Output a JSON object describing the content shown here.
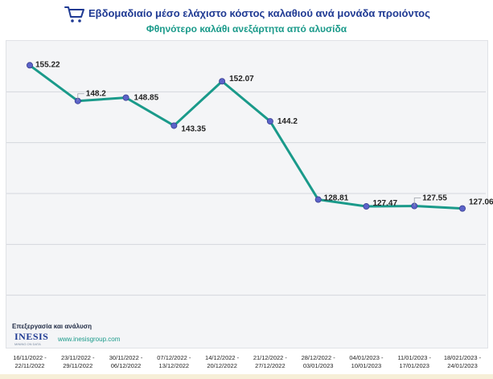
{
  "header": {
    "title": "Εβδομαδιαίο μέσο ελάχιστο κόστος καλαθιού ανά μονάδα προιόντος",
    "subtitle": "Φθηνότερο καλάθι ανεξάρτητα από αλυσίδα",
    "icon": "shopping-cart-icon"
  },
  "footer": {
    "credit": "Επεξεργασία και ανάλυση",
    "logo_text": "INESIS",
    "logo_tagline": "MINING ON DATA",
    "website": "www.inesisgroup.com"
  },
  "colors": {
    "line": "#1a9a8a",
    "marker": "#5b63c9",
    "title": "#1f3a93",
    "subtitle": "#1a9a8a",
    "grid": "#d4d7dc"
  },
  "chart_data": {
    "type": "line",
    "title": "Εβδομαδιαίο μέσο ελάχιστο κόστος καλαθιού ανά μονάδα προιόντος",
    "subtitle": "Φθηνότερο καλάθι ανεξάρτητα από αλυσίδα",
    "xlabel": "",
    "ylabel": "",
    "ylim": [
      100,
      160
    ],
    "grid": true,
    "categories": [
      [
        "16/11/2022 -",
        "22/11/2022"
      ],
      [
        "23/11/2022 -",
        "29/11/2022"
      ],
      [
        "30/11/2022 -",
        "06/12/2022"
      ],
      [
        "07/12/2022 -",
        "13/12/2022"
      ],
      [
        "14/12/2022 -",
        "20/12/2022"
      ],
      [
        "21/12/2022 -",
        "27/12/2022"
      ],
      [
        "28/12/2022 -",
        "03/01/2023"
      ],
      [
        "04/01/2023 -",
        "10/01/2023"
      ],
      [
        "11/01/2023 -",
        "17/01/2023"
      ],
      [
        "18/021/2023 -",
        "24/01/2023"
      ]
    ],
    "series": [
      {
        "name": "Μέσο ελάχιστο κόστος",
        "values": [
          155.22,
          148.2,
          148.85,
          143.35,
          152.07,
          144.2,
          128.81,
          127.47,
          127.55,
          127.06
        ],
        "labels": [
          "155.22",
          "148.2",
          "148.85",
          "143.35",
          "152.07",
          "144.2",
          "128.81",
          "127.47",
          "127.55",
          "127.06"
        ]
      }
    ]
  }
}
